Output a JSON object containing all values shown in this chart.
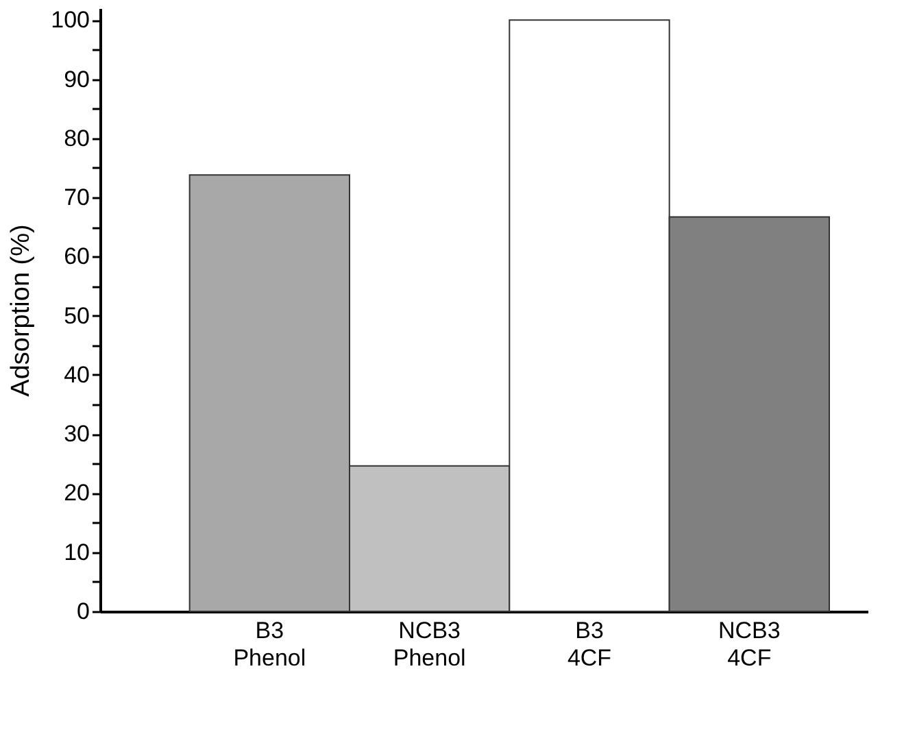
{
  "chart_data": {
    "type": "bar",
    "ylabel": "Adsorption (%)",
    "categories": [
      "B3\nPhenol",
      "NCB3\nPhenol",
      "B3\n4CF",
      "NCB3\n4CF"
    ],
    "values": [
      73.8,
      24.6,
      100,
      66.7
    ],
    "colors": [
      "#a8a8a8",
      "#c0c0c0",
      "#ffffff",
      "#808080"
    ],
    "ylim": [
      0,
      102
    ],
    "yticks": [
      0,
      {
        "value": 5,
        "label": null
      },
      10,
      {
        "value": 15,
        "label": null
      },
      20,
      {
        "value": 25,
        "label": null
      },
      30,
      {
        "value": 35,
        "label": null
      },
      40,
      {
        "value": 45,
        "label": null
      },
      50,
      {
        "value": 55,
        "label": null
      },
      60,
      {
        "value": 65,
        "label": null
      },
      70,
      {
        "value": 75,
        "label": null
      },
      80,
      {
        "value": 85,
        "label": null
      },
      90,
      {
        "value": 95,
        "label": null
      },
      100
    ],
    "grid": false
  }
}
